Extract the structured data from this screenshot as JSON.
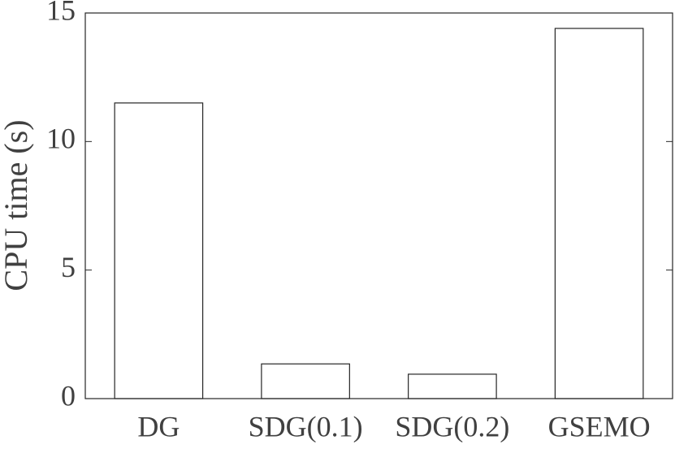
{
  "chart_data": {
    "type": "bar",
    "y_label": "CPU time (s)",
    "categories": [
      "DG",
      "SDG(0.1)",
      "SDG(0.2)",
      "GSEMO"
    ],
    "values": [
      11.5,
      1.35,
      0.95,
      14.4
    ],
    "color": "#ffffff",
    "edgecolor": "#262626",
    "ylim": [
      0,
      15
    ],
    "yticks": [
      0,
      5,
      10,
      15
    ],
    "grid": false
  }
}
